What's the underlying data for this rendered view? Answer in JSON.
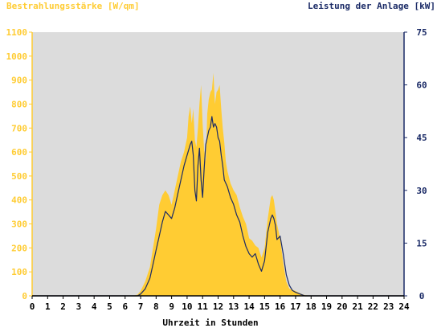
{
  "chart_data": {
    "type": "area",
    "left_axis_title": "Bestrahlungsstärke [W/qm]",
    "right_axis_title": "Leistung der Anlage [kW]",
    "xlabel": "Uhrzeit in Stunden",
    "x_ticks": [
      "0",
      "1",
      "2",
      "3",
      "4",
      "5",
      "6",
      "7",
      "8",
      "9",
      "10",
      "11",
      "12",
      "13",
      "14",
      "15",
      "16",
      "17",
      "18",
      "19",
      "20",
      "21",
      "22",
      "23",
      "24"
    ],
    "y_left_ticks": [
      "0",
      "100",
      "200",
      "300",
      "400",
      "500",
      "600",
      "700",
      "800",
      "900",
      "1000",
      "1100"
    ],
    "y_right_ticks": [
      "0",
      "15",
      "30",
      "45",
      "60",
      "75"
    ],
    "xlim": [
      0,
      24
    ],
    "ylim_left": [
      0,
      1100
    ],
    "ylim_right": [
      0,
      75
    ],
    "grid": false,
    "colors": {
      "irradiance": "#ffcc33",
      "power": "#1a2a66",
      "left_axis": "#ffcc33",
      "right_axis": "#1a2a66",
      "plot_bg": "#dcdcdc"
    },
    "series": [
      {
        "axis": "left",
        "kind": "area",
        "x": [
          0,
          6.5,
          6.8,
          7.0,
          7.3,
          7.6,
          7.8,
          8.0,
          8.2,
          8.4,
          8.6,
          8.8,
          9.0,
          9.2,
          9.4,
          9.6,
          9.8,
          10.0,
          10.1,
          10.2,
          10.3,
          10.4,
          10.5,
          10.6,
          10.7,
          10.8,
          10.9,
          11.0,
          11.1,
          11.2,
          11.3,
          11.4,
          11.5,
          11.6,
          11.7,
          11.8,
          11.9,
          12.0,
          12.1,
          12.2,
          12.3,
          12.4,
          12.5,
          12.6,
          12.8,
          13.0,
          13.2,
          13.4,
          13.6,
          13.8,
          14.0,
          14.2,
          14.4,
          14.6,
          14.8,
          15.0,
          15.2,
          15.4,
          15.5,
          15.6,
          15.7,
          15.8,
          16.0,
          16.2,
          16.4,
          16.6,
          16.8,
          17.0,
          17.3,
          17.6,
          18.0,
          24
        ],
        "y": [
          0,
          0,
          5,
          20,
          60,
          120,
          200,
          280,
          380,
          420,
          440,
          420,
          380,
          440,
          500,
          560,
          600,
          660,
          750,
          790,
          720,
          780,
          650,
          620,
          700,
          800,
          880,
          720,
          610,
          560,
          760,
          820,
          850,
          860,
          930,
          800,
          850,
          860,
          880,
          780,
          700,
          640,
          560,
          520,
          470,
          440,
          420,
          370,
          330,
          300,
          240,
          230,
          210,
          200,
          160,
          200,
          320,
          410,
          420,
          400,
          350,
          300,
          240,
          140,
          60,
          30,
          25,
          20,
          10,
          3,
          0,
          0
        ]
      },
      {
        "axis": "right",
        "kind": "line",
        "x": [
          0,
          6.8,
          7.0,
          7.3,
          7.6,
          7.8,
          8.0,
          8.2,
          8.4,
          8.6,
          8.8,
          9.0,
          9.2,
          9.4,
          9.6,
          9.8,
          10.0,
          10.2,
          10.3,
          10.4,
          10.5,
          10.6,
          10.7,
          10.8,
          10.9,
          11.0,
          11.1,
          11.2,
          11.3,
          11.4,
          11.5,
          11.6,
          11.7,
          11.8,
          11.9,
          12.0,
          12.1,
          12.2,
          12.3,
          12.4,
          12.6,
          12.8,
          13.0,
          13.2,
          13.4,
          13.6,
          13.8,
          14.0,
          14.2,
          14.4,
          14.6,
          14.8,
          15.0,
          15.2,
          15.4,
          15.5,
          15.6,
          15.7,
          15.8,
          16.0,
          16.2,
          16.4,
          16.6,
          16.8,
          17.0,
          17.3,
          17.6,
          18.0,
          24
        ],
        "y": [
          0,
          0,
          0.5,
          2,
          5,
          9,
          13,
          17,
          21,
          24,
          23,
          22,
          25,
          29,
          33,
          37,
          40,
          43,
          44,
          40,
          30,
          27,
          37,
          42,
          33,
          28,
          36,
          43,
          45,
          47,
          48,
          51,
          48,
          49,
          48,
          45,
          44,
          40,
          37,
          33,
          31,
          28,
          26,
          23,
          21,
          17,
          14,
          12,
          11,
          12,
          9,
          7,
          10,
          18,
          22,
          23,
          22,
          20,
          16,
          17,
          12,
          6,
          3,
          1.5,
          1,
          0.5,
          0,
          0,
          0
        ]
      }
    ]
  }
}
